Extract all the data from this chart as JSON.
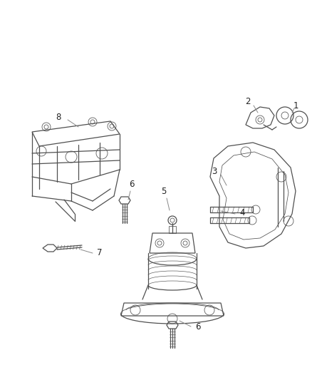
{
  "background_color": "#ffffff",
  "line_color": "#505050",
  "label_color": "#222222",
  "label_fontsize": 8.5,
  "fig_width": 4.38,
  "fig_height": 5.33,
  "dpi": 100
}
